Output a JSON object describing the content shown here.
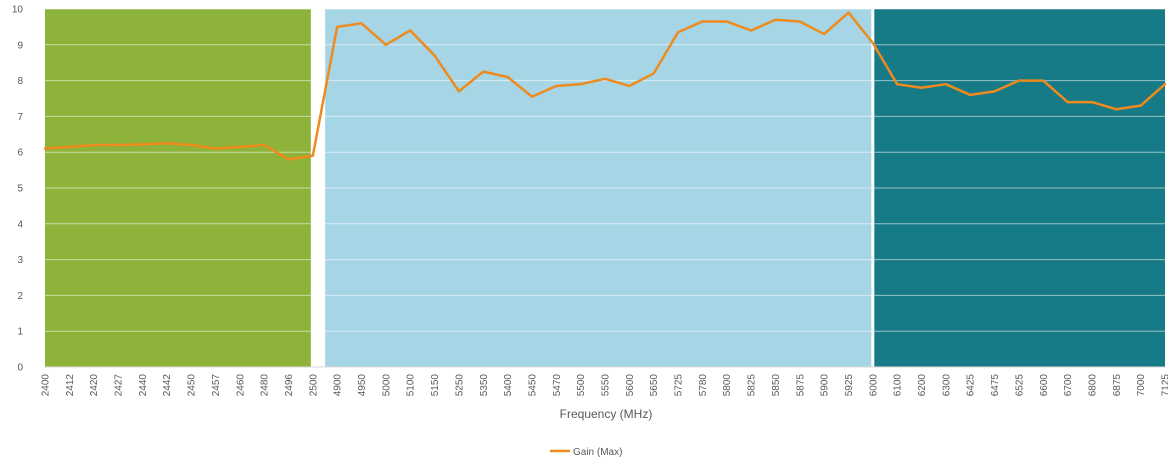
{
  "chart_data": {
    "type": "line",
    "title": "",
    "xlabel": "Frequency (MHz)",
    "ylabel": "",
    "ylim": [
      0,
      10
    ],
    "y_ticks": [
      0,
      1,
      2,
      3,
      4,
      5,
      6,
      7,
      8,
      9,
      10
    ],
    "grid": true,
    "legend_position": "bottom",
    "categories": [
      "2400",
      "2412",
      "2420",
      "2427",
      "2440",
      "2442",
      "2450",
      "2457",
      "2460",
      "2480",
      "2496",
      "2500",
      "4900",
      "4950",
      "5000",
      "5100",
      "5150",
      "5250",
      "5350",
      "5400",
      "5450",
      "5470",
      "5500",
      "5550",
      "5600",
      "5650",
      "5725",
      "5780",
      "5800",
      "5825",
      "5850",
      "5875",
      "5900",
      "5925",
      "6000",
      "6100",
      "6200",
      "6300",
      "6425",
      "6475",
      "6525",
      "6600",
      "6700",
      "6800",
      "6875",
      "7000",
      "7125"
    ],
    "bands": [
      {
        "from": "2400",
        "to": "2500",
        "color": "#8db33a"
      },
      {
        "from": "4900",
        "to": "6000",
        "color": "#a6d5e6"
      },
      {
        "from": "6000",
        "to": "7125",
        "color": "#167a87"
      }
    ],
    "series": [
      {
        "name": "Gain (Max)",
        "color": "#ef8b1d",
        "values": [
          6.1,
          6.15,
          6.2,
          6.2,
          6.22,
          6.25,
          6.2,
          6.1,
          6.15,
          6.2,
          5.8,
          5.9,
          9.5,
          9.6,
          9.0,
          9.4,
          8.7,
          7.7,
          8.25,
          8.1,
          7.55,
          7.85,
          7.9,
          8.05,
          7.85,
          8.2,
          9.35,
          9.65,
          9.65,
          9.4,
          9.7,
          9.65,
          9.3,
          9.9,
          9.05,
          7.9,
          7.8,
          7.9,
          7.6,
          7.7,
          8.0,
          8.0,
          7.4,
          7.4,
          7.2,
          7.3,
          7.9
        ]
      }
    ]
  }
}
